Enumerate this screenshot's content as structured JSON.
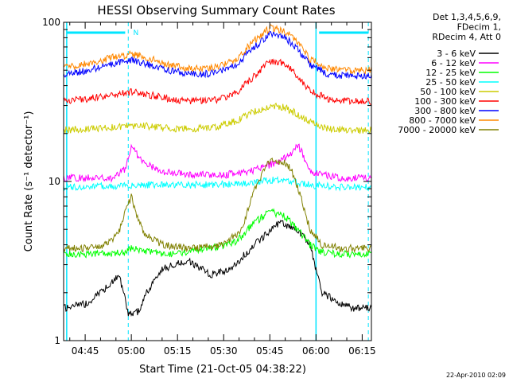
{
  "chart_data": {
    "type": "line",
    "title": "HESSI Observing Summary Count Rates",
    "xlabel": "Start Time (21-Oct-05 04:38:22)",
    "ylabel": "Count Rate (s⁻¹ detector⁻¹)",
    "yscale": "log",
    "ylim": [
      1,
      100
    ],
    "xlim_min": [
      278,
      378
    ],
    "xticks": [
      {
        "min": 285,
        "label": "04:45"
      },
      {
        "min": 300,
        "label": "05:00"
      },
      {
        "min": 315,
        "label": "05:15"
      },
      {
        "min": 330,
        "label": "05:30"
      },
      {
        "min": 345,
        "label": "05:45"
      },
      {
        "min": 360,
        "label": "06:00"
      },
      {
        "min": 375,
        "label": "06:15"
      }
    ],
    "yticks": [
      {
        "value": 1,
        "label": "1"
      },
      {
        "value": 10,
        "label": "10"
      },
      {
        "value": 100,
        "label": "100"
      }
    ],
    "info_text": [
      "Det 1,3,4,5,6,9,",
      "FDecim 1,",
      "RDecim 4, Att 0"
    ],
    "flag_label": "N",
    "footer": "22-Apr-2010 02:09",
    "legend_position": "right",
    "series": [
      {
        "name": "3 - 6 keV",
        "color": "#000000",
        "min": [
          278,
          285,
          290,
          296,
          299,
          302,
          305,
          310,
          318,
          326,
          332,
          340,
          348,
          354,
          358,
          362,
          368,
          372,
          378
        ],
        "values": [
          1.6,
          1.7,
          2.0,
          2.6,
          1.5,
          1.5,
          2.0,
          2.8,
          3.2,
          2.6,
          2.8,
          4.0,
          5.5,
          5.0,
          4.0,
          2.0,
          1.7,
          1.6,
          1.6
        ]
      },
      {
        "name": "6 - 12 keV",
        "color": "#ff00ff",
        "min": [
          278,
          286,
          294,
          298,
          300,
          304,
          310,
          320,
          330,
          338,
          344,
          348,
          352,
          354,
          356,
          358,
          362,
          368,
          378
        ],
        "values": [
          10.5,
          10.5,
          10.5,
          12.0,
          16.5,
          13.0,
          11.5,
          11.0,
          11.0,
          11.5,
          12.5,
          13.5,
          15.0,
          17.0,
          14.5,
          11.5,
          11.0,
          10.5,
          10.5
        ]
      },
      {
        "name": "12 - 25 keV",
        "color": "#00ff00",
        "min": [
          278,
          285,
          292,
          298,
          300,
          305,
          310,
          318,
          326,
          334,
          340,
          345,
          350,
          354,
          358,
          362,
          368,
          378
        ],
        "values": [
          3.5,
          3.5,
          3.5,
          3.6,
          3.8,
          3.6,
          3.5,
          3.6,
          3.8,
          4.2,
          5.5,
          6.5,
          6.0,
          5.0,
          4.0,
          3.6,
          3.5,
          3.5
        ]
      },
      {
        "name": "25 - 50 keV",
        "color": "#00ffff",
        "min": [
          278,
          290,
          300,
          310,
          320,
          330,
          340,
          346,
          352,
          358,
          365,
          378
        ],
        "values": [
          9.2,
          9.3,
          9.5,
          9.5,
          9.5,
          9.6,
          9.9,
          10.2,
          10.0,
          9.5,
          9.3,
          9.2
        ]
      },
      {
        "name": "50 - 100 keV",
        "color": "#cccc00",
        "min": [
          278,
          288,
          296,
          302,
          308,
          314,
          320,
          328,
          334,
          340,
          345,
          350,
          354,
          358,
          364,
          370,
          378
        ],
        "values": [
          21.0,
          21.5,
          22.0,
          22.5,
          22.0,
          21.5,
          21.5,
          22.0,
          24.0,
          27.5,
          30.0,
          29.0,
          26.5,
          23.5,
          21.5,
          21.0,
          21.0
        ]
      },
      {
        "name": "100 - 300 keV",
        "color": "#ff0000",
        "min": [
          278,
          286,
          294,
          300,
          306,
          312,
          320,
          328,
          334,
          340,
          345,
          350,
          354,
          358,
          364,
          370,
          378
        ],
        "values": [
          32.0,
          33.0,
          35.0,
          36.5,
          35.0,
          33.0,
          32.0,
          32.5,
          36.0,
          46.0,
          57.0,
          55.0,
          46.0,
          37.0,
          33.0,
          32.0,
          32.0
        ]
      },
      {
        "name": "300 - 800 keV",
        "color": "#0000ff",
        "min": [
          278,
          286,
          294,
          300,
          306,
          312,
          320,
          328,
          334,
          340,
          345,
          350,
          354,
          358,
          364,
          370,
          378
        ],
        "values": [
          47.0,
          50.0,
          55.0,
          58.0,
          54.0,
          50.0,
          47.0,
          48.0,
          54.0,
          70.0,
          84.0,
          80.0,
          68.0,
          54.0,
          47.0,
          46.0,
          46.0
        ]
      },
      {
        "name": "800 - 7000 keV",
        "color": "#ff8800",
        "min": [
          278,
          286,
          294,
          300,
          306,
          312,
          320,
          328,
          334,
          340,
          345,
          350,
          354,
          358,
          364,
          370,
          378
        ],
        "values": [
          52.0,
          55.0,
          60.0,
          63.0,
          59.0,
          54.0,
          51.0,
          52.0,
          59.0,
          77.0,
          92.0,
          88.0,
          74.0,
          59.0,
          51.0,
          50.0,
          50.0
        ]
      },
      {
        "name": "7000 - 20000 keV",
        "color": "#808000",
        "min": [
          278,
          286,
          292,
          296,
          298,
          300,
          302,
          304,
          310,
          320,
          330,
          336,
          340,
          345,
          350,
          352,
          355,
          358,
          362,
          368,
          378
        ],
        "values": [
          3.8,
          3.8,
          4.0,
          4.8,
          6.5,
          8.0,
          6.0,
          4.8,
          4.0,
          3.8,
          4.0,
          5.0,
          9.0,
          13.5,
          13.0,
          12.0,
          8.0,
          5.0,
          4.0,
          3.8,
          3.8
        ]
      }
    ]
  }
}
